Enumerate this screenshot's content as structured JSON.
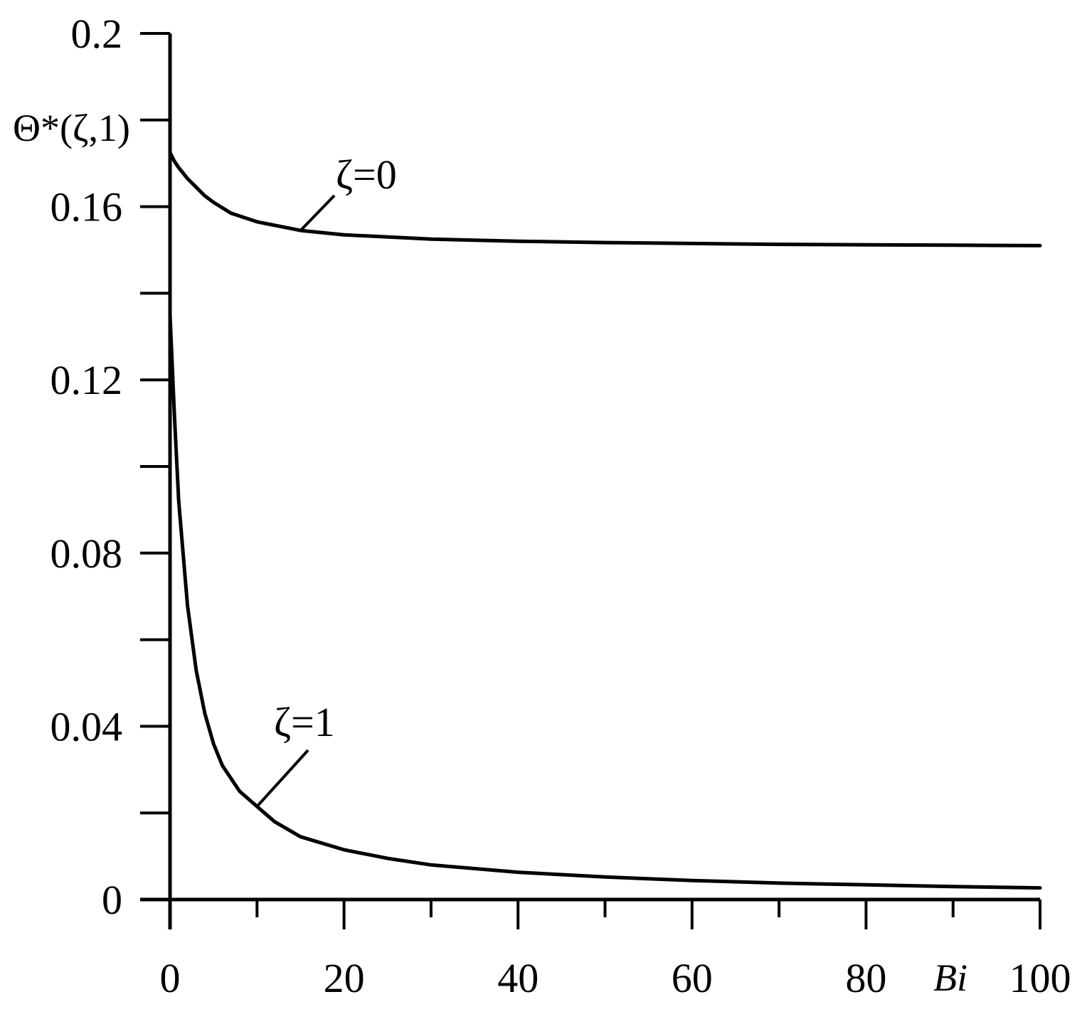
{
  "chart_data": {
    "type": "line",
    "title": "",
    "xlabel": "Bi",
    "ylabel": "Θ*(ζ,1)",
    "xlim": [
      0,
      100
    ],
    "ylim": [
      0,
      0.2
    ],
    "x_ticks": [
      "0",
      "20",
      "40",
      "60",
      "80",
      "100"
    ],
    "y_ticks": [
      "0",
      "0.04",
      "0.08",
      "0.12",
      "0.16",
      "0.2"
    ],
    "grid": false,
    "series": [
      {
        "name": "ζ=0",
        "x": [
          0,
          0.5,
          1,
          2,
          3,
          4,
          5,
          7,
          10,
          15,
          20,
          30,
          40,
          50,
          60,
          70,
          80,
          90,
          100
        ],
        "y": [
          0.1725,
          0.1705,
          0.169,
          0.1665,
          0.1645,
          0.1625,
          0.161,
          0.1585,
          0.1565,
          0.1545,
          0.1535,
          0.1525,
          0.152,
          0.1517,
          0.1515,
          0.1513,
          0.1512,
          0.1511,
          0.151
        ]
      },
      {
        "name": "ζ=1",
        "x": [
          0,
          0.5,
          1,
          2,
          3,
          4,
          5,
          6,
          8,
          10,
          12,
          15,
          20,
          25,
          30,
          40,
          50,
          60,
          70,
          80,
          90,
          100
        ],
        "y": [
          0.135,
          0.112,
          0.092,
          0.068,
          0.053,
          0.043,
          0.036,
          0.031,
          0.025,
          0.0215,
          0.018,
          0.0145,
          0.0115,
          0.0095,
          0.008,
          0.0063,
          0.0052,
          0.0044,
          0.0038,
          0.0034,
          0.003,
          0.0027
        ]
      }
    ],
    "annotations": [
      "ζ=0",
      "ζ=1"
    ]
  }
}
